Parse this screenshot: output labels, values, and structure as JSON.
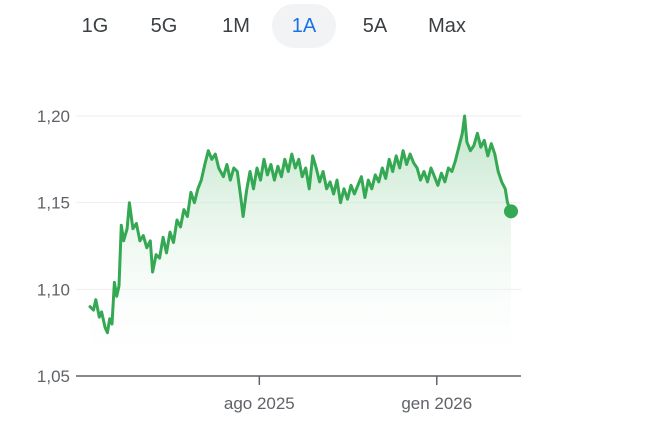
{
  "range_tabs": [
    {
      "label": "1G",
      "active": false
    },
    {
      "label": "5G",
      "active": false
    },
    {
      "label": "1M",
      "active": false
    },
    {
      "label": "1A",
      "active": true
    },
    {
      "label": "5A",
      "active": false
    },
    {
      "label": "Max",
      "active": false
    }
  ],
  "colors": {
    "line": "#34a853",
    "fill_top": "#b9e2c4",
    "axis": "#5f6368",
    "grid": "#eeeeee",
    "active_tab_text": "#1a73e8",
    "active_tab_bg": "#f1f3f4"
  },
  "chart_data": {
    "type": "area",
    "title": "",
    "xlabel": "",
    "ylabel": "",
    "x_range": [
      "2025-03-08",
      "2026-03-06"
    ],
    "ylim": [
      1.05,
      1.2
    ],
    "y_ticks": [
      {
        "value": 1.05,
        "label": "1,05"
      },
      {
        "value": 1.1,
        "label": "1,10"
      },
      {
        "value": 1.15,
        "label": "1,15"
      },
      {
        "value": 1.2,
        "label": "1,20"
      }
    ],
    "x_ticks": [
      {
        "date": "2025-08-01",
        "label": "ago 2025"
      },
      {
        "date": "2026-01-01",
        "label": "gen 2026"
      }
    ],
    "grid": true,
    "last_point_marker": true,
    "series": [
      {
        "points": [
          [
            "2025-03-08",
            1.09
          ],
          [
            "2025-03-11",
            1.088
          ],
          [
            "2025-03-13",
            1.094
          ],
          [
            "2025-03-16",
            1.084
          ],
          [
            "2025-03-18",
            1.087
          ],
          [
            "2025-03-21",
            1.078
          ],
          [
            "2025-03-23",
            1.075
          ],
          [
            "2025-03-25",
            1.083
          ],
          [
            "2025-03-27",
            1.08
          ],
          [
            "2025-03-29",
            1.104
          ],
          [
            "2025-03-31",
            1.096
          ],
          [
            "2025-04-02",
            1.102
          ],
          [
            "2025-04-04",
            1.137
          ],
          [
            "2025-04-06",
            1.128
          ],
          [
            "2025-04-09",
            1.135
          ],
          [
            "2025-04-11",
            1.15
          ],
          [
            "2025-04-14",
            1.135
          ],
          [
            "2025-04-17",
            1.138
          ],
          [
            "2025-04-20",
            1.128
          ],
          [
            "2025-04-23",
            1.131
          ],
          [
            "2025-04-26",
            1.124
          ],
          [
            "2025-04-29",
            1.128
          ],
          [
            "2025-05-01",
            1.11
          ],
          [
            "2025-05-04",
            1.12
          ],
          [
            "2025-05-07",
            1.118
          ],
          [
            "2025-05-10",
            1.13
          ],
          [
            "2025-05-13",
            1.121
          ],
          [
            "2025-05-16",
            1.133
          ],
          [
            "2025-05-19",
            1.127
          ],
          [
            "2025-05-22",
            1.14
          ],
          [
            "2025-05-25",
            1.136
          ],
          [
            "2025-05-28",
            1.146
          ],
          [
            "2025-05-31",
            1.142
          ],
          [
            "2025-06-03",
            1.156
          ],
          [
            "2025-06-06",
            1.15
          ],
          [
            "2025-06-09",
            1.158
          ],
          [
            "2025-06-12",
            1.163
          ],
          [
            "2025-06-15",
            1.172
          ],
          [
            "2025-06-18",
            1.18
          ],
          [
            "2025-06-21",
            1.175
          ],
          [
            "2025-06-24",
            1.178
          ],
          [
            "2025-06-27",
            1.17
          ],
          [
            "2025-07-01",
            1.165
          ],
          [
            "2025-07-04",
            1.172
          ],
          [
            "2025-07-07",
            1.163
          ],
          [
            "2025-07-10",
            1.17
          ],
          [
            "2025-07-13",
            1.168
          ],
          [
            "2025-07-16",
            1.153
          ],
          [
            "2025-07-18",
            1.142
          ],
          [
            "2025-07-21",
            1.157
          ],
          [
            "2025-07-24",
            1.168
          ],
          [
            "2025-07-27",
            1.158
          ],
          [
            "2025-07-30",
            1.17
          ],
          [
            "2025-08-02",
            1.163
          ],
          [
            "2025-08-05",
            1.175
          ],
          [
            "2025-08-08",
            1.166
          ],
          [
            "2025-08-11",
            1.172
          ],
          [
            "2025-08-14",
            1.163
          ],
          [
            "2025-08-17",
            1.171
          ],
          [
            "2025-08-20",
            1.165
          ],
          [
            "2025-08-23",
            1.175
          ],
          [
            "2025-08-26",
            1.168
          ],
          [
            "2025-08-29",
            1.178
          ],
          [
            "2025-09-01",
            1.17
          ],
          [
            "2025-09-04",
            1.175
          ],
          [
            "2025-09-07",
            1.165
          ],
          [
            "2025-09-10",
            1.17
          ],
          [
            "2025-09-13",
            1.158
          ],
          [
            "2025-09-16",
            1.177
          ],
          [
            "2025-09-19",
            1.17
          ],
          [
            "2025-09-22",
            1.162
          ],
          [
            "2025-09-25",
            1.168
          ],
          [
            "2025-09-28",
            1.158
          ],
          [
            "2025-10-01",
            1.162
          ],
          [
            "2025-10-04",
            1.155
          ],
          [
            "2025-10-07",
            1.163
          ],
          [
            "2025-10-10",
            1.15
          ],
          [
            "2025-10-13",
            1.158
          ],
          [
            "2025-10-16",
            1.152
          ],
          [
            "2025-10-19",
            1.16
          ],
          [
            "2025-10-22",
            1.155
          ],
          [
            "2025-10-25",
            1.16
          ],
          [
            "2025-10-28",
            1.165
          ],
          [
            "2025-10-31",
            1.153
          ],
          [
            "2025-11-03",
            1.163
          ],
          [
            "2025-11-06",
            1.158
          ],
          [
            "2025-11-09",
            1.166
          ],
          [
            "2025-11-12",
            1.162
          ],
          [
            "2025-11-15",
            1.17
          ],
          [
            "2025-11-18",
            1.164
          ],
          [
            "2025-11-21",
            1.175
          ],
          [
            "2025-11-24",
            1.168
          ],
          [
            "2025-11-27",
            1.177
          ],
          [
            "2025-11-30",
            1.17
          ],
          [
            "2025-12-03",
            1.18
          ],
          [
            "2025-12-06",
            1.172
          ],
          [
            "2025-12-09",
            1.178
          ],
          [
            "2025-12-12",
            1.173
          ],
          [
            "2025-12-15",
            1.17
          ],
          [
            "2025-12-18",
            1.163
          ],
          [
            "2025-12-21",
            1.168
          ],
          [
            "2025-12-24",
            1.162
          ],
          [
            "2025-12-27",
            1.17
          ],
          [
            "2025-12-30",
            1.165
          ],
          [
            "2026-01-02",
            1.16
          ],
          [
            "2026-01-05",
            1.167
          ],
          [
            "2026-01-08",
            1.162
          ],
          [
            "2026-01-11",
            1.17
          ],
          [
            "2026-01-14",
            1.168
          ],
          [
            "2026-01-17",
            1.174
          ],
          [
            "2026-01-20",
            1.182
          ],
          [
            "2026-01-23",
            1.19
          ],
          [
            "2026-01-25",
            1.2
          ],
          [
            "2026-01-27",
            1.185
          ],
          [
            "2026-01-30",
            1.18
          ],
          [
            "2026-02-02",
            1.183
          ],
          [
            "2026-02-05",
            1.19
          ],
          [
            "2026-02-08",
            1.182
          ],
          [
            "2026-02-11",
            1.186
          ],
          [
            "2026-02-14",
            1.177
          ],
          [
            "2026-02-17",
            1.184
          ],
          [
            "2026-02-20",
            1.178
          ],
          [
            "2026-02-23",
            1.168
          ],
          [
            "2026-02-26",
            1.162
          ],
          [
            "2026-03-01",
            1.158
          ],
          [
            "2026-03-03",
            1.15
          ],
          [
            "2026-03-06",
            1.145
          ]
        ]
      }
    ]
  }
}
